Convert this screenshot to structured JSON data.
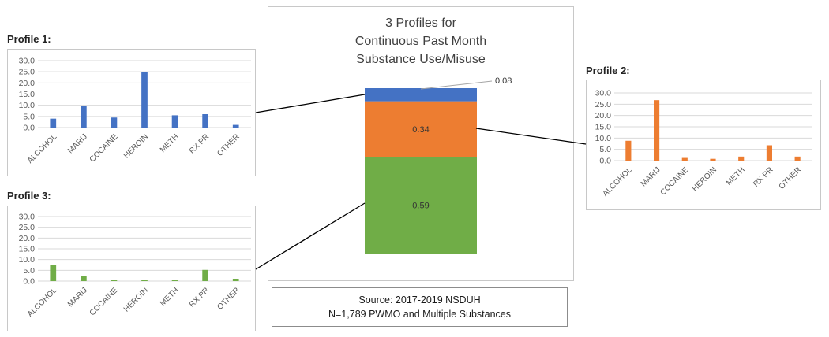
{
  "labels": {
    "profile1": "Profile 1:",
    "profile2": "Profile 2:",
    "profile3": "Profile 3:"
  },
  "source": {
    "line1": "Source: 2017-2019 NSDUH",
    "line2": "N=1,789 PWMO and Multiple Substances"
  },
  "colors": {
    "profile1": "#4472c4",
    "profile2": "#ed7d31",
    "profile3": "#70ad47"
  },
  "chart_data": [
    {
      "type": "bar",
      "name": "profile1",
      "categories": [
        "ALCOHOL",
        "MARIJ",
        "COCAINE",
        "HEROIN",
        "METH",
        "RX PR",
        "OTHER"
      ],
      "values": [
        4.0,
        9.8,
        4.5,
        24.8,
        5.5,
        6.0,
        1.2
      ],
      "ylim": [
        0,
        30
      ],
      "yticks": [
        "0.0",
        "5.0",
        "10.0",
        "15.0",
        "20.0",
        "25.0",
        "30.0"
      ],
      "grid": true,
      "color": "#4472c4"
    },
    {
      "type": "bar",
      "name": "profile2",
      "categories": [
        "ALCOHOL",
        "MARIJ",
        "COCAINE",
        "HEROIN",
        "METH",
        "RX PR",
        "OTHER"
      ],
      "values": [
        8.8,
        26.8,
        1.2,
        0.8,
        1.8,
        6.8,
        1.8
      ],
      "ylim": [
        0,
        30
      ],
      "yticks": [
        "0.0",
        "5.0",
        "10.0",
        "15.0",
        "20.0",
        "25.0",
        "30.0"
      ],
      "grid": true,
      "color": "#ed7d31"
    },
    {
      "type": "bar",
      "name": "profile3",
      "categories": [
        "ALCOHOL",
        "MARIJ",
        "COCAINE",
        "HEROIN",
        "METH",
        "RX PR",
        "OTHER"
      ],
      "values": [
        7.5,
        2.2,
        0.6,
        0.6,
        0.6,
        5.2,
        1.1
      ],
      "ylim": [
        0,
        30
      ],
      "yticks": [
        "0.0",
        "5.0",
        "10.0",
        "15.0",
        "20.0",
        "25.0",
        "30.0"
      ],
      "grid": true,
      "color": "#70ad47"
    },
    {
      "type": "bar",
      "stacked": true,
      "title": "3 Profiles for Continuous Past Month Substance Use/Misuse",
      "title_lines": [
        "3 Profiles for",
        "Continuous Past Month",
        "Substance Use/Misuse"
      ],
      "series": [
        {
          "value": 0.59,
          "label": "0.59",
          "color": "#70ad47"
        },
        {
          "value": 0.34,
          "label": "0.34",
          "color": "#ed7d31"
        },
        {
          "value": 0.08,
          "label": "0.08",
          "color": "#4472c4"
        }
      ]
    }
  ]
}
